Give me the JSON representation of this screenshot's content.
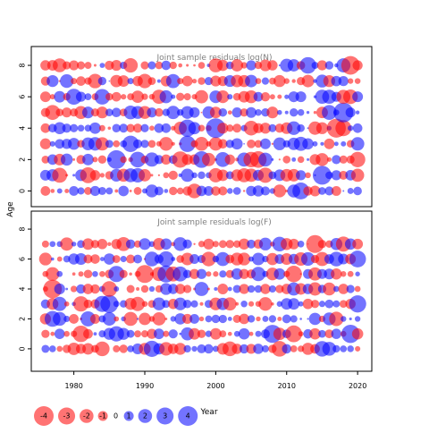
{
  "chart_data": {
    "type": "scatter",
    "subtype": "bubble-residuals",
    "shared": {
      "ylabel": "Age",
      "xlabel": "Year",
      "xlim": [
        1974,
        2022
      ],
      "x_ticks": [
        1980,
        1990,
        2000,
        2010,
        2020
      ],
      "y_ticks": [
        0,
        2,
        4,
        6,
        8
      ],
      "colors": {
        "negative": "#ff0000",
        "positive": "#0000ff"
      },
      "opacity": 0.55
    },
    "panels": [
      {
        "title": "Joint sample residuals log(N)",
        "ylim": [
          -1,
          9.2
        ],
        "years": [
          1976,
          2020
        ],
        "ages": [
          0,
          8
        ],
        "seed": 1337
      },
      {
        "title": "Joint sample residuals log(F)",
        "ylim": [
          -1.5,
          9.2
        ],
        "years": [
          1976,
          2020
        ],
        "ages": [
          0,
          7
        ],
        "seed": 4242
      }
    ],
    "legend": {
      "values": [
        -4,
        -3,
        -2,
        -1,
        0,
        1,
        2,
        3,
        4
      ],
      "labels": [
        "-4",
        "-3",
        "-2",
        "-1",
        "0",
        "1",
        "2",
        "3",
        "4"
      ]
    }
  }
}
